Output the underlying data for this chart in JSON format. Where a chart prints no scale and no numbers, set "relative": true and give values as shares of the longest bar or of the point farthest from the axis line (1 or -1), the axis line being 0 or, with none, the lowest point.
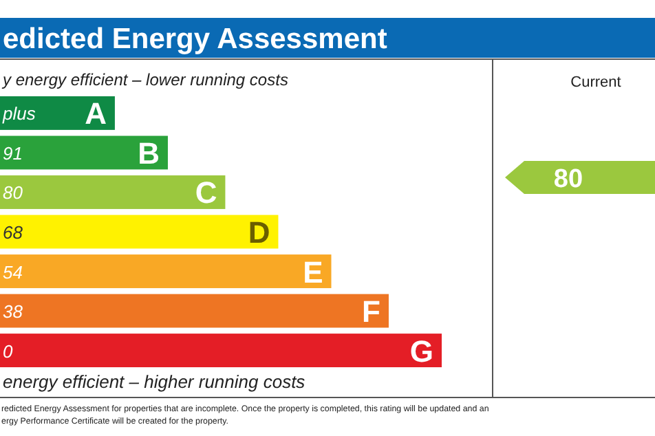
{
  "chart_data": {
    "type": "bar",
    "orientation": "horizontal",
    "relative": true,
    "title": "edicted Energy Assessment",
    "categories": [
      "plus",
      "91",
      "80",
      "68",
      "54",
      "38",
      "0"
    ],
    "values": [
      0.26,
      0.38,
      0.51,
      0.63,
      0.75,
      0.88,
      1
    ],
    "colors": [
      "#0f8a45",
      "#2aa23b",
      "#9bc83e",
      "#fff200",
      "#f9a825",
      "#ee7523",
      "#e41e26"
    ],
    "annotations": [
      {
        "text": "A",
        "x": 0.26,
        "y": "plus"
      },
      {
        "text": "B",
        "x": 0.38,
        "y": "91"
      },
      {
        "text": "C",
        "x": 0.51,
        "y": "80"
      },
      {
        "text": "D",
        "x": 0.63,
        "y": "68"
      },
      {
        "text": "E",
        "x": 0.75,
        "y": "54"
      },
      {
        "text": "F",
        "x": 0.88,
        "y": "38"
      },
      {
        "text": "G",
        "x": 1,
        "y": "0"
      },
      "y energy efficient – lower running costs",
      "energy efficient – higher running costs",
      "Current",
      "80",
      "redicted Energy Assessment for properties that are incomplete. Once the property is completed, this rating will be updated and an",
      "ergy Performance Certificate will be created for the property."
    ]
  }
}
